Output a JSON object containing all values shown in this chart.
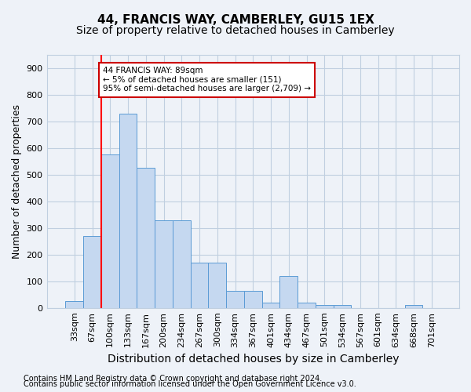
{
  "title": "44, FRANCIS WAY, CAMBERLEY, GU15 1EX",
  "subtitle": "Size of property relative to detached houses in Camberley",
  "xlabel": "Distribution of detached houses by size in Camberley",
  "ylabel": "Number of detached properties",
  "categories": [
    "33sqm",
    "67sqm",
    "100sqm",
    "133sqm",
    "167sqm",
    "200sqm",
    "234sqm",
    "267sqm",
    "300sqm",
    "334sqm",
    "367sqm",
    "401sqm",
    "434sqm",
    "467sqm",
    "501sqm",
    "534sqm",
    "567sqm",
    "601sqm",
    "634sqm",
    "668sqm",
    "701sqm"
  ],
  "values": [
    25,
    270,
    575,
    730,
    525,
    328,
    328,
    170,
    170,
    65,
    65,
    20,
    120,
    20,
    10,
    10,
    0,
    0,
    0,
    10,
    0
  ],
  "bar_color": "#c5d8f0",
  "bar_edge_color": "#5b9bd5",
  "vline_x_index": 1.5,
  "vline_color": "red",
  "annotation_text": "44 FRANCIS WAY: 89sqm\n← 5% of detached houses are smaller (151)\n95% of semi-detached houses are larger (2,709) →",
  "annotation_box_color": "white",
  "annotation_box_edge": "#cc0000",
  "ylim": [
    0,
    950
  ],
  "yticks": [
    0,
    100,
    200,
    300,
    400,
    500,
    600,
    700,
    800,
    900
  ],
  "footer1": "Contains HM Land Registry data © Crown copyright and database right 2024.",
  "footer2": "Contains public sector information licensed under the Open Government Licence v3.0.",
  "bg_color": "#eef2f8",
  "plot_bg_color": "#eef2f8",
  "grid_color": "#c0cfe0",
  "title_fontsize": 11,
  "subtitle_fontsize": 10,
  "axis_label_fontsize": 9,
  "tick_fontsize": 8,
  "footer_fontsize": 7
}
